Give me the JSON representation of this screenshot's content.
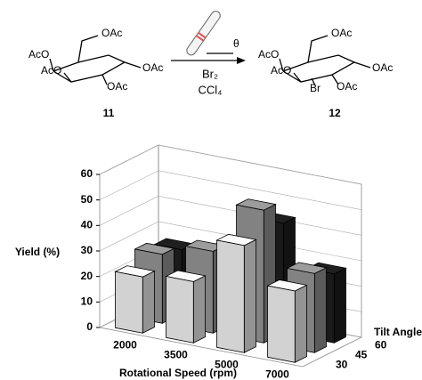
{
  "scheme": {
    "left": {
      "labels": [
        "OAc",
        "AcO",
        "AcO",
        "OAc",
        "OAc"
      ],
      "number": "11"
    },
    "right": {
      "labels": [
        "OAc",
        "AcO",
        "AcO",
        "Br",
        "OAc",
        "OAc"
      ],
      "number": "12"
    },
    "theta": "θ",
    "reagent": "Br₂",
    "solvent": "CCl₄"
  },
  "chart_data": {
    "type": "bar3d",
    "ylabel": "Yield (%)",
    "xlabel": "Rotational Speed (rpm)",
    "zlabel": "Tilt Angle (°)",
    "categories": [
      "2000",
      "3500",
      "5000",
      "7000"
    ],
    "series": [
      {
        "name": "30",
        "color": "#d2d2d2",
        "values": [
          22,
          24,
          42,
          28
        ]
      },
      {
        "name": "45",
        "color": "#828282",
        "values": [
          27,
          32,
          52,
          31
        ]
      },
      {
        "name": "60",
        "color": "#1a1a1a",
        "values": [
          25,
          27,
          43,
          27
        ]
      }
    ],
    "ylim": [
      0,
      60
    ],
    "yticks": [
      0,
      10,
      20,
      30,
      40,
      50,
      60
    ],
    "grid": true
  }
}
